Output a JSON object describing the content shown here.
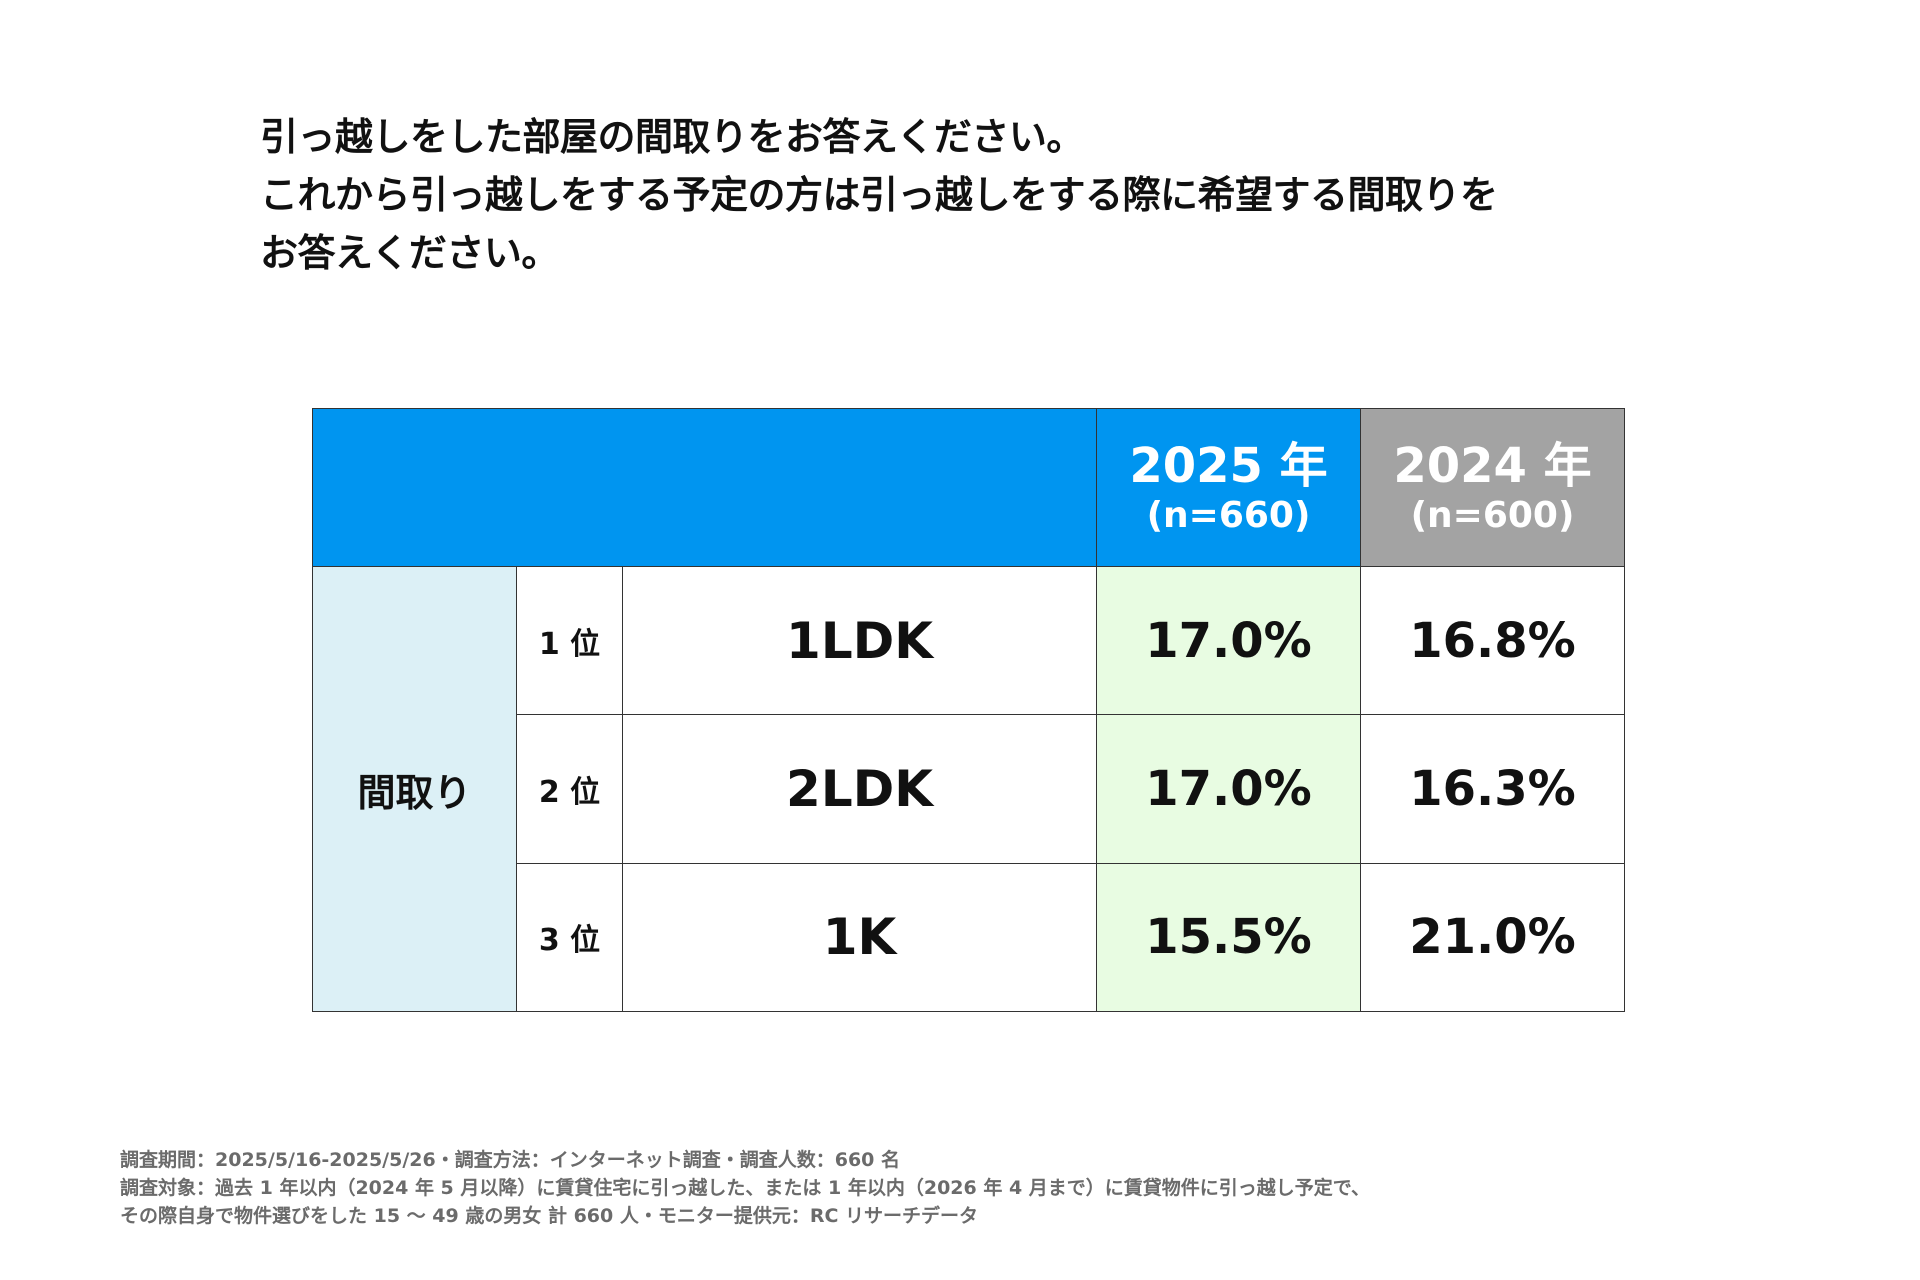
{
  "question": {
    "line1": "引っ越しをした部屋の間取りをお答えください。",
    "line2": "これから引っ越しをする予定の方は引っ越しをする際に希望する間取りを",
    "line3": "お答えください。"
  },
  "table": {
    "columns": [
      {
        "year": "2025 年",
        "n": "(n=660)",
        "color": "#0095f0"
      },
      {
        "year": "2024 年",
        "n": "(n=600)",
        "color": "#a3a3a3"
      }
    ],
    "category": "間取り",
    "rows": [
      {
        "rank": "1 位",
        "layout": "1LDK",
        "v2025": "17.0%",
        "v2024": "16.8%"
      },
      {
        "rank": "2 位",
        "layout": "2LDK",
        "v2025": "17.0%",
        "v2024": "16.3%"
      },
      {
        "rank": "3 位",
        "layout": "1K",
        "v2025": "15.5%",
        "v2024": "21.0%"
      }
    ]
  },
  "footnote": {
    "line1": "調査期間：2025/5/16-2025/5/26・調査方法：インターネット調査・調査人数：660 名",
    "line2": "調査対象：過去 1 年以内（2024 年 5 月以降）に賃貸住宅に引っ越した、または 1 年以内（2026 年 4 月まで）に賃貸物件に引っ越し予定で、",
    "line3": "その際自身で物件選びをした 15 ～ 49 歳の男女 計 660 人・モニター提供元：RC リサーチデータ"
  }
}
